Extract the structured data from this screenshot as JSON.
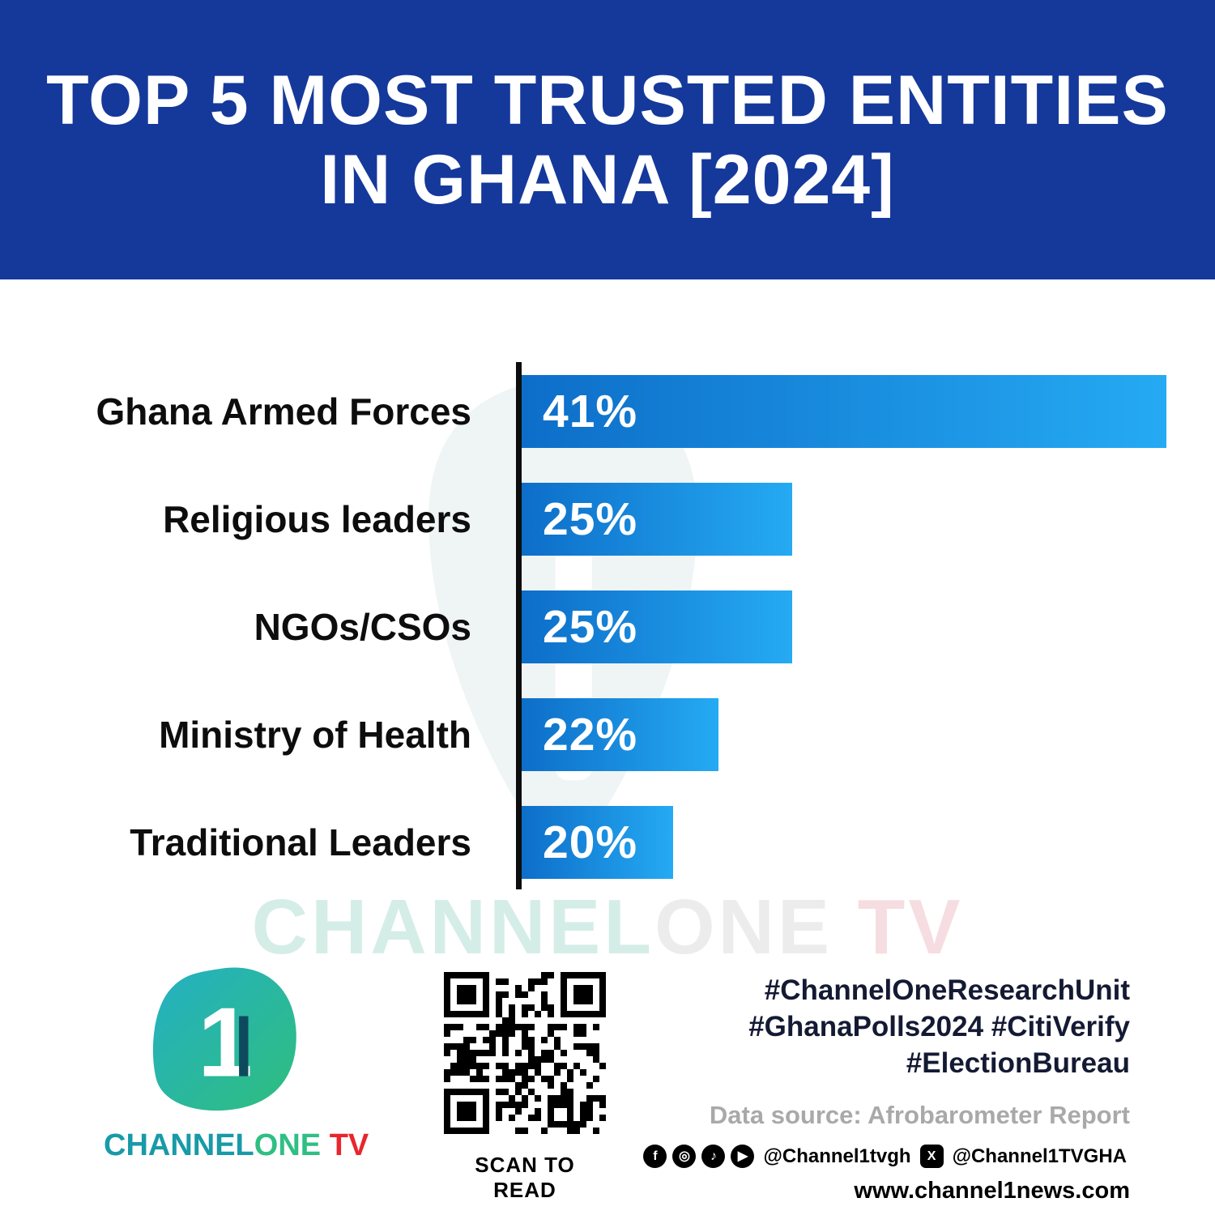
{
  "header": {
    "title_line1": "TOP 5 MOST TRUSTED ENTITIES",
    "title_line2": "IN GHANA [2024]",
    "bg_color": "#15389b"
  },
  "chart_data": {
    "type": "bar",
    "orientation": "horizontal",
    "title": "Top 5 Most Trusted Entities in Ghana [2024]",
    "categories": [
      "Ghana Armed Forces",
      "Religious leaders",
      "NGOs/CSOs",
      "Ministry of Health",
      "Traditional Leaders"
    ],
    "values": [
      41,
      25,
      25,
      22,
      20
    ],
    "value_labels": [
      "41%",
      "25%",
      "25%",
      "22%",
      "20%"
    ],
    "bar_width_pct": [
      100,
      42,
      42,
      30.5,
      23.5
    ],
    "bar_gradient": [
      "#0d6ec9",
      "#25aaf3"
    ],
    "axis_color": "#0d0d0d",
    "grid": false,
    "legend": false
  },
  "watermark": {
    "part1": "CHANNEL",
    "part2": "ONE",
    "part3": " TV"
  },
  "footer": {
    "logo": {
      "digit": "1",
      "text_part1": "CHANNEL",
      "text_part2": "ONE",
      "text_part3": " TV",
      "teal": "#189aa8",
      "green": "#2fbf83",
      "red": "#e8262d"
    },
    "qr_caption": "SCAN TO READ",
    "hashtags_line1": "#ChannelOneResearchUnit",
    "hashtags_line2": "#GhanaPolls2024 #CitiVerify",
    "hashtags_line3": "#ElectionBureau",
    "data_source": "Data source: Afrobarometer Report",
    "social": {
      "icons": [
        "facebook-icon",
        "instagram-icon",
        "tiktok-icon",
        "youtube-icon",
        "x-icon"
      ],
      "glyphs": {
        "facebook": "f",
        "instagram": "◎",
        "tiktok": "♪",
        "youtube": "▶",
        "x": "X"
      },
      "handle1": "@Channel1tvgh",
      "handle2": "@Channel1TVGHA"
    },
    "website": "www.channel1news.com"
  }
}
